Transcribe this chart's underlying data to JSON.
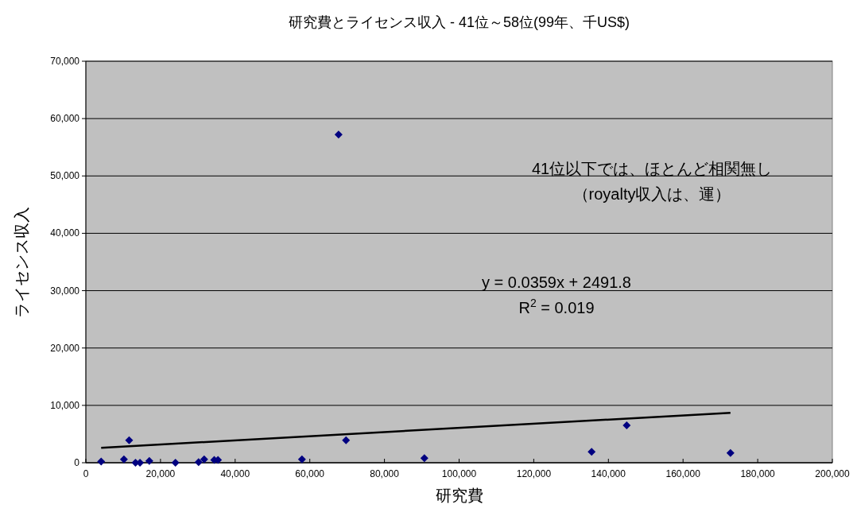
{
  "chart_data": {
    "type": "scatter",
    "title": "研究費とライセンス収入 - 41位～58位(99年、千US$)",
    "xlabel": "研究費",
    "ylabel": "ライセンス収入",
    "annotations": [
      "41位以下では、ほとんど相関無し",
      "（royalty収入は、運）",
      "y = 0.0359x + 2491.8",
      "R$^{2}$ = 0.019"
    ],
    "xlim": [
      0,
      200000
    ],
    "ylim": [
      0,
      70000
    ],
    "xticks": [
      0,
      {
        "value": 20000,
        "label": "20,000"
      },
      {
        "value": 40000,
        "label": "40,000"
      },
      {
        "value": 60000,
        "label": "60,000"
      },
      {
        "value": 80000,
        "label": "80,000"
      },
      {
        "value": 100000,
        "label": "100,000"
      },
      {
        "value": 120000,
        "label": "120,000"
      },
      {
        "value": 140000,
        "label": "140,000"
      },
      {
        "value": 160000,
        "label": "160,000"
      },
      {
        "value": 180000,
        "label": "180,000"
      },
      {
        "value": 200000,
        "label": "200,000"
      }
    ],
    "yticks": [
      0,
      {
        "value": 10000,
        "label": "10,000"
      },
      {
        "value": 20000,
        "label": "20,000"
      },
      {
        "value": 30000,
        "label": "30,000"
      },
      {
        "value": 40000,
        "label": "40,000"
      },
      {
        "value": 50000,
        "label": "50,000"
      },
      {
        "value": 60000,
        "label": "60,000"
      },
      {
        "value": 70000,
        "label": "70,000"
      }
    ],
    "grid": "y",
    "legend": false,
    "series": [
      {
        "type": "scatter",
        "marker": "diamond",
        "color": "#000080",
        "x": [
          4100,
          10200,
          11600,
          13300,
          14500,
          17000,
          24000,
          30200,
          31700,
          34400,
          35400,
          57900,
          67700,
          69700,
          90700,
          135500,
          144900,
          172700
        ],
        "values": [
          200,
          600,
          3900,
          0,
          0,
          300,
          0,
          100,
          600,
          500,
          500,
          600,
          57200,
          3900,
          800,
          1900,
          6500,
          1700
        ]
      },
      {
        "type": "line",
        "color": "#000000",
        "line_style": "solid",
        "x": [
          4100,
          172700
        ],
        "values": [
          2600,
          8700
        ]
      }
    ]
  }
}
